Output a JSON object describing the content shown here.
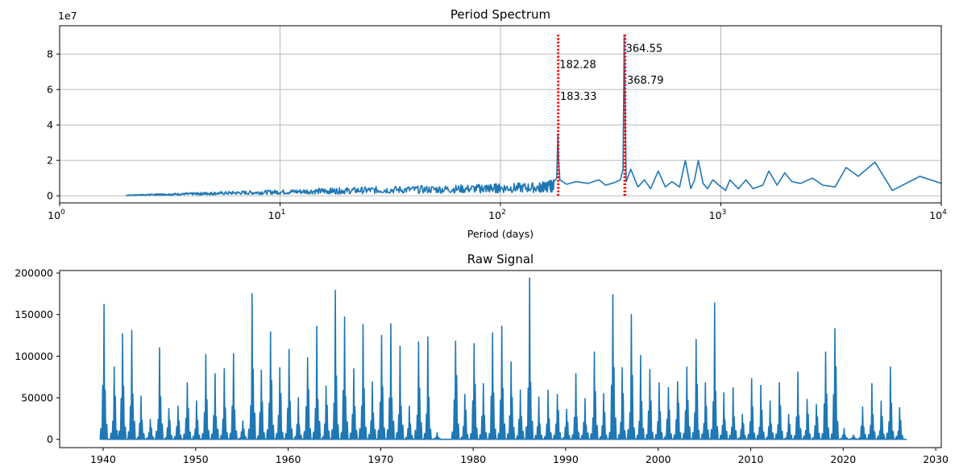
{
  "chart_data": [
    {
      "type": "line",
      "title": "Period Spectrum",
      "xlabel": "Period (days)",
      "ylabel": "",
      "xscale": "log",
      "xlim": [
        1,
        10000
      ],
      "ylim": [
        -4000000,
        96000000
      ],
      "y_offset_text": "1e7",
      "grid": true,
      "x_ticks": [
        {
          "base": "10",
          "exp": "0",
          "value": 1
        },
        {
          "base": "10",
          "exp": "1",
          "value": 10
        },
        {
          "base": "10",
          "exp": "2",
          "value": 100
        },
        {
          "base": "10",
          "exp": "3",
          "value": 1000
        },
        {
          "base": "10",
          "exp": "4",
          "value": 10000
        }
      ],
      "y_ticks": [
        {
          "label": "0",
          "value": 0
        },
        {
          "label": "2",
          "value": 20000000
        },
        {
          "label": "4",
          "value": 40000000
        },
        {
          "label": "6",
          "value": 60000000
        },
        {
          "label": "8",
          "value": 80000000
        }
      ],
      "peak_lines": [
        182.28,
        183.33,
        364.55,
        368.79
      ],
      "annotations": [
        {
          "text": "364.55",
          "x": 364.55,
          "y": 83000000
        },
        {
          "text": "182.28",
          "x": 182.28,
          "y": 74000000
        },
        {
          "text": "368.79",
          "x": 368.79,
          "y": 65000000
        },
        {
          "text": "183.33",
          "x": 183.33,
          "y": 56000000
        }
      ],
      "series": [
        {
          "color": "#1f77b4",
          "points": [
            [
              2.0,
              400000
            ],
            [
              2.5,
              800000
            ],
            [
              3.0,
              1100000
            ],
            [
              4.0,
              1500000
            ],
            [
              5.0,
              1900000
            ],
            [
              7.0,
              2400000
            ],
            [
              10.0,
              3000000
            ],
            [
              15.0,
              3600000
            ],
            [
              20.0,
              4000000
            ],
            [
              30.0,
              4600000
            ],
            [
              50.0,
              5000000
            ],
            [
              80.0,
              5600000
            ],
            [
              100.0,
              6000000
            ],
            [
              150.0,
              6500000
            ],
            [
              175.0,
              8000000
            ],
            [
              180.0,
              10000000
            ],
            [
              182.28,
              35000000
            ],
            [
              183.33,
              22000000
            ],
            [
              186.0,
              9000000
            ],
            [
              200.0,
              6500000
            ],
            [
              220.0,
              8000000
            ],
            [
              250.0,
              7000000
            ],
            [
              280.0,
              9000000
            ],
            [
              300.0,
              6000000
            ],
            [
              330.0,
              7500000
            ],
            [
              350.0,
              9000000
            ],
            [
              360.0,
              15000000
            ],
            [
              364.55,
              90000000
            ],
            [
              368.79,
              40000000
            ],
            [
              372.0,
              8000000
            ],
            [
              390.0,
              15000000
            ],
            [
              420.0,
              5000000
            ],
            [
              450.0,
              9000000
            ],
            [
              480.0,
              4000000
            ],
            [
              520.0,
              14000000
            ],
            [
              560.0,
              5000000
            ],
            [
              600.0,
              8000000
            ],
            [
              650.0,
              5000000
            ],
            [
              690.0,
              20000000
            ],
            [
              730.0,
              4000000
            ],
            [
              760.0,
              9000000
            ],
            [
              790.0,
              20000000
            ],
            [
              830.0,
              7000000
            ],
            [
              870.0,
              4000000
            ],
            [
              920.0,
              9000000
            ],
            [
              980.0,
              6000000
            ],
            [
              1050.0,
              3000000
            ],
            [
              1100.0,
              9000000
            ],
            [
              1200.0,
              4000000
            ],
            [
              1300.0,
              9000000
            ],
            [
              1400.0,
              4000000
            ],
            [
              1550.0,
              6000000
            ],
            [
              1650.0,
              14000000
            ],
            [
              1800.0,
              6000000
            ],
            [
              1950.0,
              13000000
            ],
            [
              2100.0,
              8000000
            ],
            [
              2300.0,
              7000000
            ],
            [
              2600.0,
              10000000
            ],
            [
              2900.0,
              6000000
            ],
            [
              3300.0,
              5000000
            ],
            [
              3700.0,
              16000000
            ],
            [
              4200.0,
              11000000
            ],
            [
              5000.0,
              19000000
            ],
            [
              6000.0,
              3000000
            ],
            [
              8000.0,
              11000000
            ],
            [
              10000.0,
              7000000
            ]
          ]
        }
      ]
    },
    {
      "type": "line",
      "title": "Raw Signal",
      "xlabel": "",
      "ylabel": "",
      "xlim": [
        1935.3,
        2030.6
      ],
      "ylim": [
        -10000,
        203000
      ],
      "grid": false,
      "x_ticks": [
        {
          "label": "1940",
          "value": 1940
        },
        {
          "label": "1950",
          "value": 1950
        },
        {
          "label": "1960",
          "value": 1960
        },
        {
          "label": "1970",
          "value": 1970
        },
        {
          "label": "1980",
          "value": 1980
        },
        {
          "label": "1990",
          "value": 1990
        },
        {
          "label": "2000",
          "value": 2000
        },
        {
          "label": "2010",
          "value": 2010
        },
        {
          "label": "2020",
          "value": 2020
        },
        {
          "label": "2030",
          "value": 2030
        }
      ],
      "y_ticks": [
        {
          "label": "0",
          "value": 0
        },
        {
          "label": "50000",
          "value": 50000
        },
        {
          "label": "100000",
          "value": 100000
        },
        {
          "label": "150000",
          "value": 150000
        },
        {
          "label": "200000",
          "value": 200000
        }
      ],
      "series": [
        {
          "color": "#1f77b4",
          "peaks": [
            [
              1940.1,
              162000
            ],
            [
              1941.2,
              87000
            ],
            [
              1942.1,
              127000
            ],
            [
              1943.1,
              131000
            ],
            [
              1944.1,
              52000
            ],
            [
              1945.1,
              24000
            ],
            [
              1946.1,
              110000
            ],
            [
              1947.1,
              37000
            ],
            [
              1948.1,
              40000
            ],
            [
              1949.1,
              68000
            ],
            [
              1950.1,
              46000
            ],
            [
              1951.1,
              102000
            ],
            [
              1952.1,
              79000
            ],
            [
              1953.1,
              85000
            ],
            [
              1954.1,
              103000
            ],
            [
              1955.1,
              22000
            ],
            [
              1956.1,
              175000
            ],
            [
              1957.1,
              83000
            ],
            [
              1958.1,
              129000
            ],
            [
              1959.1,
              86000
            ],
            [
              1960.1,
              108000
            ],
            [
              1961.1,
              50000
            ],
            [
              1962.1,
              98000
            ],
            [
              1963.1,
              136000
            ],
            [
              1964.1,
              64000
            ],
            [
              1965.1,
              179000
            ],
            [
              1966.1,
              147000
            ],
            [
              1967.1,
              85000
            ],
            [
              1968.1,
              138000
            ],
            [
              1969.1,
              69000
            ],
            [
              1970.1,
              125000
            ],
            [
              1971.1,
              139000
            ],
            [
              1972.1,
              112000
            ],
            [
              1973.1,
              40000
            ],
            [
              1974.1,
              117000
            ],
            [
              1975.1,
              123000
            ],
            [
              1976.1,
              8000
            ],
            [
              1978.1,
              118000
            ],
            [
              1979.1,
              54000
            ],
            [
              1980.1,
              115000
            ],
            [
              1981.1,
              67000
            ],
            [
              1982.1,
              128000
            ],
            [
              1983.1,
              136000
            ],
            [
              1984.1,
              93000
            ],
            [
              1985.1,
              59000
            ],
            [
              1986.1,
              194000
            ],
            [
              1987.1,
              51000
            ],
            [
              1988.1,
              59000
            ],
            [
              1989.1,
              54000
            ],
            [
              1990.1,
              36000
            ],
            [
              1991.1,
              79000
            ],
            [
              1992.1,
              49000
            ],
            [
              1993.1,
              105000
            ],
            [
              1994.1,
              55000
            ],
            [
              1995.1,
              174000
            ],
            [
              1996.1,
              86000
            ],
            [
              1997.1,
              150000
            ],
            [
              1998.1,
              101000
            ],
            [
              1999.1,
              84000
            ],
            [
              2000.1,
              68000
            ],
            [
              2001.1,
              62000
            ],
            [
              2002.1,
              69000
            ],
            [
              2003.1,
              87000
            ],
            [
              2004.1,
              120000
            ],
            [
              2005.1,
              68000
            ],
            [
              2006.1,
              164000
            ],
            [
              2007.1,
              56000
            ],
            [
              2008.1,
              62000
            ],
            [
              2009.1,
              30000
            ],
            [
              2010.1,
              73000
            ],
            [
              2011.1,
              65000
            ],
            [
              2012.1,
              46000
            ],
            [
              2013.1,
              68000
            ],
            [
              2014.1,
              30000
            ],
            [
              2015.1,
              81000
            ],
            [
              2016.1,
              48000
            ],
            [
              2017.1,
              42000
            ],
            [
              2018.1,
              105000
            ],
            [
              2019.1,
              133000
            ],
            [
              2020.1,
              13000
            ],
            [
              2021.1,
              5000
            ],
            [
              2022.1,
              39000
            ],
            [
              2023.1,
              67000
            ],
            [
              2024.1,
              46000
            ],
            [
              2025.1,
              87000
            ],
            [
              2026.1,
              38000
            ]
          ]
        }
      ]
    }
  ]
}
